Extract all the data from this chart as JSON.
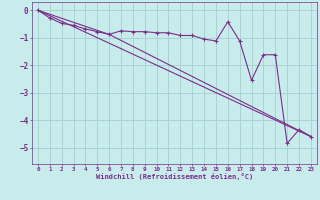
{
  "xlabel": "Windchill (Refroidissement éolien,°C)",
  "background_color": "#c8ecec",
  "grid_color": "#aad4d4",
  "line_color": "#7b2d8b",
  "xlim": [
    -0.5,
    23.5
  ],
  "ylim": [
    -5.6,
    0.3
  ],
  "yticks": [
    0,
    -1,
    -2,
    -3,
    -4,
    -5
  ],
  "xticks": [
    0,
    1,
    2,
    3,
    4,
    5,
    6,
    7,
    8,
    9,
    10,
    11,
    12,
    13,
    14,
    15,
    16,
    17,
    18,
    19,
    20,
    21,
    22,
    23
  ],
  "series1_x": [
    0,
    1,
    2,
    3,
    4,
    5,
    6,
    7,
    8,
    9,
    10,
    11,
    12,
    13,
    14,
    15,
    16,
    17,
    18,
    19,
    20,
    21,
    22,
    23
  ],
  "series1_y": [
    0.0,
    -0.28,
    -0.48,
    -0.55,
    -0.68,
    -0.78,
    -0.88,
    -0.75,
    -0.78,
    -0.78,
    -0.82,
    -0.82,
    -0.92,
    -0.92,
    -1.05,
    -1.12,
    -0.42,
    -1.12,
    -2.55,
    -1.62,
    -1.62,
    -4.85,
    -4.35,
    -4.6
  ],
  "series2_x": [
    0,
    23
  ],
  "series2_y": [
    0.0,
    -4.6
  ],
  "series3_x": [
    0,
    6,
    23
  ],
  "series3_y": [
    0.0,
    -0.88,
    -4.6
  ]
}
